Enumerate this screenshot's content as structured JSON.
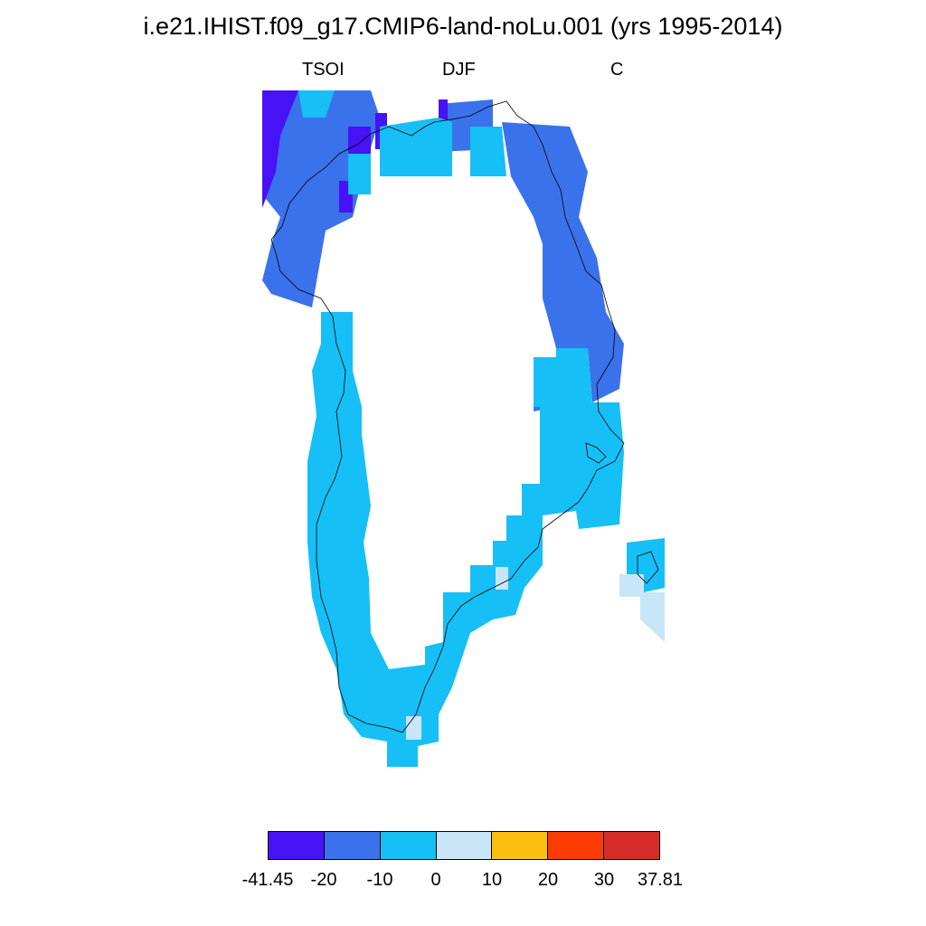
{
  "title": "i.e21.IHIST.f09_g17.CMIP6-land-noLu.001 (yrs 1995-2014)",
  "subtitles": {
    "variable": "TSOI",
    "season": "DJF",
    "units": "C"
  },
  "map": {
    "region": "Greenland",
    "projection": "polar-stereographic",
    "coastlines": true
  },
  "colorbar": {
    "colors": [
      "#4712f5",
      "#3a72eb",
      "#16bff6",
      "#c8e6f7",
      "#fdbf12",
      "#fb3b04",
      "#d52c2a"
    ],
    "tick_labels": [
      "-41.45",
      "-20",
      "-10",
      "0",
      "10",
      "20",
      "30",
      "37.81"
    ]
  }
}
